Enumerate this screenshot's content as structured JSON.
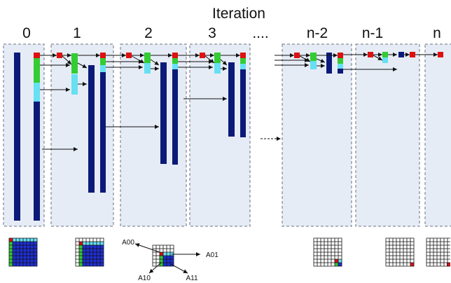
{
  "title": "Iteration",
  "iterations": [
    "0",
    "1",
    "2",
    "3",
    "n-2",
    "n-1",
    "n"
  ],
  "ellipsis": "....",
  "block_labels": {
    "a00": "A00",
    "a01": "A01",
    "a10": "A10",
    "a11": "A11"
  },
  "colors": {
    "navy": "#0b1a78",
    "green": "#33cc33",
    "cyan": "#66e0f2",
    "red": "#dd1111",
    "blue_cell": "#1f2fd6",
    "panel_fill": "#e6ecf6"
  }
}
